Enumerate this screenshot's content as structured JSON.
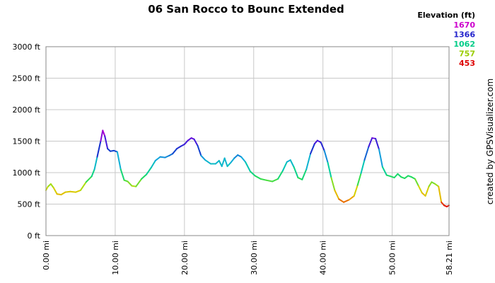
{
  "chart_data": {
    "type": "line",
    "title": "06 San Rocco to Bounc Extended",
    "xlabel": "",
    "ylabel": "",
    "x_unit": "mi",
    "y_unit": "ft",
    "xlim": [
      0,
      58.21
    ],
    "ylim": [
      0,
      3000
    ],
    "x_ticks": [
      "0.00 mi",
      "10.00 mi",
      "20.00 mi",
      "30.00 mi",
      "40.00 mi",
      "50.00 mi",
      "58.21 mi"
    ],
    "x_tick_values": [
      0,
      10,
      20,
      30,
      40,
      50,
      58.21
    ],
    "y_ticks": [
      "0 ft",
      "500 ft",
      "1000 ft",
      "1500 ft",
      "2000 ft",
      "2500 ft",
      "3000 ft"
    ],
    "y_tick_values": [
      0,
      500,
      1000,
      1500,
      2000,
      2500,
      3000
    ],
    "grid": true,
    "legend": {
      "title": "Elevation (ft)",
      "position": "top-right",
      "entries": [
        {
          "label": "1670",
          "color": "#cc00cc"
        },
        {
          "label": "1366",
          "color": "#2222cc"
        },
        {
          "label": "1062",
          "color": "#00cc88"
        },
        {
          "label": "757",
          "color": "#99cc00"
        },
        {
          "label": "453",
          "color": "#dd0000"
        }
      ]
    },
    "color_scale": [
      {
        "elevation": 453,
        "color": "#dd0000"
      },
      {
        "elevation": 605,
        "color": "#eeaa00"
      },
      {
        "elevation": 757,
        "color": "#ccdd00"
      },
      {
        "elevation": 910,
        "color": "#22dd55"
      },
      {
        "elevation": 1062,
        "color": "#00ccaa"
      },
      {
        "elevation": 1214,
        "color": "#11aadd"
      },
      {
        "elevation": 1366,
        "color": "#1133cc"
      },
      {
        "elevation": 1520,
        "color": "#5511dd"
      },
      {
        "elevation": 1670,
        "color": "#cc00cc"
      }
    ],
    "series": [
      {
        "x": [
          0,
          0.3,
          0.7,
          1.1,
          1.6,
          2.2,
          2.8,
          3.5,
          4.3,
          5.0,
          5.8,
          6.6,
          7.0,
          7.4,
          7.9,
          8.2,
          8.5,
          8.9,
          9.3,
          9.8,
          10.3,
          10.8,
          11.3,
          11.8,
          12.4,
          13.0,
          13.8,
          14.5,
          15.2,
          15.8,
          16.5,
          17.2,
          17.8,
          18.3,
          18.9,
          19.5,
          20.0,
          20.5,
          21.0,
          21.4,
          21.9,
          22.4,
          23.0,
          23.8,
          24.5,
          25.0,
          25.4,
          25.8,
          26.2,
          26.7,
          27.2,
          27.7,
          28.2,
          28.8,
          29.5,
          30.2,
          31.0,
          31.8,
          32.7,
          33.5,
          34.2,
          34.8,
          35.3,
          35.8,
          36.4,
          37.0,
          37.6,
          38.2,
          38.8,
          39.2,
          39.7,
          40.2,
          40.7,
          41.2,
          41.7,
          42.3,
          43.0,
          43.8,
          44.5,
          45.0,
          45.5,
          46.0,
          46.6,
          47.1,
          47.6,
          48.1,
          48.6,
          49.2,
          49.8,
          50.3,
          50.8,
          51.3,
          51.8,
          52.3,
          52.8,
          53.3,
          53.8,
          54.3,
          54.8,
          55.3,
          55.7,
          56.2,
          56.7,
          57.1,
          57.5,
          57.9,
          58.21
        ],
        "y": [
          720,
          780,
          820,
          760,
          660,
          650,
          690,
          700,
          690,
          720,
          850,
          940,
          1050,
          1250,
          1500,
          1670,
          1580,
          1380,
          1340,
          1350,
          1330,
          1050,
          880,
          860,
          790,
          780,
          900,
          970,
          1080,
          1190,
          1250,
          1240,
          1270,
          1300,
          1380,
          1420,
          1450,
          1510,
          1550,
          1530,
          1430,
          1270,
          1200,
          1140,
          1140,
          1190,
          1100,
          1230,
          1100,
          1160,
          1230,
          1280,
          1250,
          1170,
          1020,
          950,
          900,
          880,
          860,
          900,
          1030,
          1170,
          1200,
          1090,
          920,
          890,
          1050,
          1300,
          1460,
          1510,
          1480,
          1350,
          1160,
          920,
          720,
          580,
          530,
          570,
          630,
          800,
          990,
          1200,
          1410,
          1550,
          1540,
          1370,
          1090,
          960,
          940,
          920,
          980,
          930,
          910,
          950,
          930,
          900,
          790,
          680,
          630,
          780,
          850,
          820,
          780,
          530,
          480,
          460,
          480
        ]
      }
    ]
  },
  "credit": "created by GPSVisualizer.com"
}
